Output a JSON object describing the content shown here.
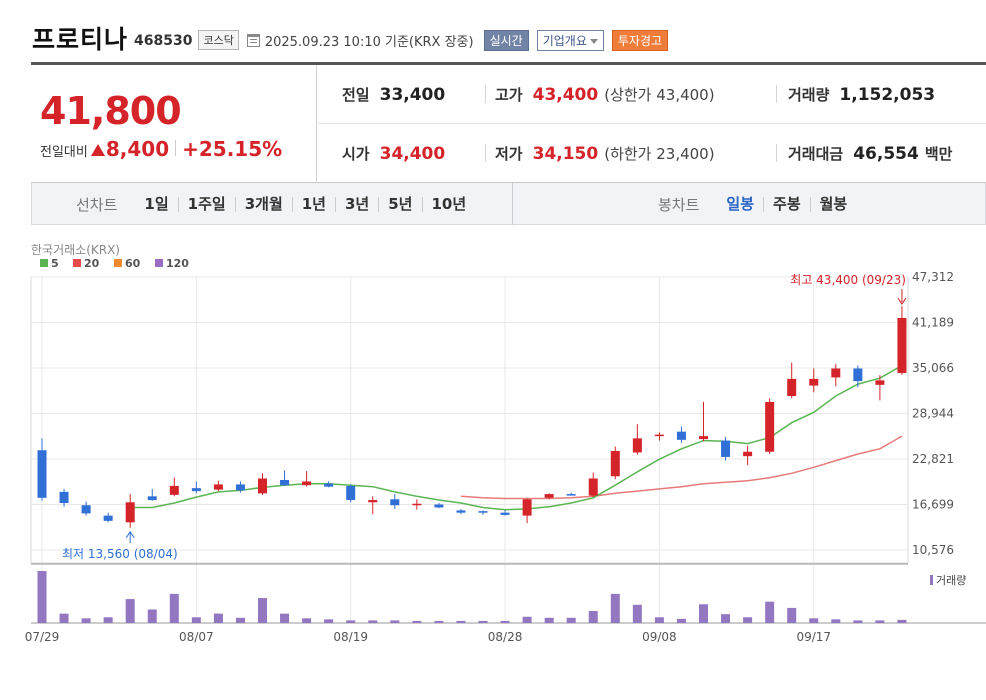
{
  "header": {
    "stock_name": "프로티나",
    "stock_code": "468530",
    "market": "코스닥",
    "timestamp": "2025.09.23 10:10  기준(KRX 장중)",
    "realtime_label": "실시간",
    "company_label": "기업개요",
    "warning_label": "투자경고"
  },
  "quote": {
    "current_price": "41,800",
    "change_label": "전일대비",
    "change_amount": "8,400",
    "change_pct": "+25.15%",
    "prev_close_label": "전일",
    "prev_close": "33,400",
    "high_label": "고가",
    "high": "43,400",
    "upper_limit": "(상한가 43,400)",
    "volume_label": "거래량",
    "volume": "1,152,053",
    "open_label": "시가",
    "open": "34,400",
    "low_label": "저가",
    "low": "34,150",
    "lower_limit": "(하한가 23,400)",
    "trade_value_label": "거래대금",
    "trade_value": "46,554",
    "trade_value_unit": "백만"
  },
  "tabs": {
    "line_chart_label": "선차트",
    "line_periods": [
      "1일",
      "1주일",
      "3개월",
      "1년",
      "3년",
      "5년",
      "10년"
    ],
    "candle_chart_label": "봉차트",
    "candle_periods": [
      "일봉",
      "주봉",
      "월봉"
    ],
    "active_candle": "일봉"
  },
  "chart_data": {
    "type": "candlestick",
    "source_label": "한국거래소(KRX)",
    "legend": [
      {
        "name": "5",
        "color": "#5ab552"
      },
      {
        "name": "20",
        "color": "#e54b4b"
      },
      {
        "name": "60",
        "color": "#ef8a2e"
      },
      {
        "name": "120",
        "color": "#9b6ec6"
      }
    ],
    "up_color": "#d5232a",
    "down_color": "#2f6fd6",
    "volume_color": "#9377c1",
    "y_ticks": [
      "47,312",
      "41,189",
      "35,066",
      "28,944",
      "22,821",
      "16,699",
      "10,576"
    ],
    "y_tick_values": [
      47312,
      41189,
      35066,
      28944,
      22821,
      16699,
      10576
    ],
    "x_tick_labels": [
      "07/29",
      "08/07",
      "08/19",
      "08/28",
      "09/08",
      "09/17"
    ],
    "x_tick_index": [
      0,
      7,
      14,
      21,
      28,
      35
    ],
    "volume_label": "거래량",
    "high_annotation": "최고 43,400 (09/23)",
    "low_annotation": "최저 13,560 (08/04)",
    "candles": [
      {
        "o": 24000,
        "h": 25600,
        "l": 17200,
        "c": 17600
      },
      {
        "o": 18400,
        "h": 18800,
        "l": 16400,
        "c": 16900
      },
      {
        "o": 16600,
        "h": 17100,
        "l": 15200,
        "c": 15500
      },
      {
        "o": 15200,
        "h": 15600,
        "l": 14300,
        "c": 14500
      },
      {
        "o": 14300,
        "h": 18100,
        "l": 13560,
        "c": 17000
      },
      {
        "o": 17800,
        "h": 18800,
        "l": 17200,
        "c": 17300
      },
      {
        "o": 18000,
        "h": 20300,
        "l": 17800,
        "c": 19200
      },
      {
        "o": 18900,
        "h": 19800,
        "l": 18200,
        "c": 18500
      },
      {
        "o": 18700,
        "h": 19900,
        "l": 18500,
        "c": 19400
      },
      {
        "o": 19400,
        "h": 19800,
        "l": 18300,
        "c": 18600
      },
      {
        "o": 18200,
        "h": 20900,
        "l": 18000,
        "c": 20200
      },
      {
        "o": 20000,
        "h": 21300,
        "l": 19200,
        "c": 19300
      },
      {
        "o": 19300,
        "h": 21200,
        "l": 19100,
        "c": 19800
      },
      {
        "o": 19500,
        "h": 19800,
        "l": 19000,
        "c": 19100
      },
      {
        "o": 19200,
        "h": 19400,
        "l": 17000,
        "c": 17300
      },
      {
        "o": 17000,
        "h": 17800,
        "l": 15400,
        "c": 17300
      },
      {
        "o": 17400,
        "h": 18100,
        "l": 16100,
        "c": 16600
      },
      {
        "o": 16700,
        "h": 17400,
        "l": 16000,
        "c": 16800
      },
      {
        "o": 16700,
        "h": 16900,
        "l": 16200,
        "c": 16300
      },
      {
        "o": 15900,
        "h": 16100,
        "l": 15400,
        "c": 15600
      },
      {
        "o": 15800,
        "h": 15900,
        "l": 15300,
        "c": 15700
      },
      {
        "o": 15600,
        "h": 15900,
        "l": 15200,
        "c": 15300
      },
      {
        "o": 15200,
        "h": 17500,
        "l": 14200,
        "c": 17400
      },
      {
        "o": 17600,
        "h": 18200,
        "l": 17400,
        "c": 18100
      },
      {
        "o": 18100,
        "h": 18300,
        "l": 17900,
        "c": 17900
      },
      {
        "o": 17900,
        "h": 21000,
        "l": 17700,
        "c": 20200
      },
      {
        "o": 20500,
        "h": 24500,
        "l": 20100,
        "c": 23900
      },
      {
        "o": 23700,
        "h": 27500,
        "l": 23400,
        "c": 25600
      },
      {
        "o": 25900,
        "h": 26400,
        "l": 25300,
        "c": 26100
      },
      {
        "o": 26500,
        "h": 27200,
        "l": 25000,
        "c": 25400
      },
      {
        "o": 25500,
        "h": 30500,
        "l": 25200,
        "c": 25900
      },
      {
        "o": 25300,
        "h": 25800,
        "l": 22600,
        "c": 23100
      },
      {
        "o": 23200,
        "h": 24600,
        "l": 22000,
        "c": 23800
      },
      {
        "o": 23800,
        "h": 31000,
        "l": 23500,
        "c": 30500
      },
      {
        "o": 31300,
        "h": 35800,
        "l": 31000,
        "c": 33600
      },
      {
        "o": 32700,
        "h": 35000,
        "l": 31800,
        "c": 33600
      },
      {
        "o": 33800,
        "h": 35600,
        "l": 32600,
        "c": 35000
      },
      {
        "o": 35000,
        "h": 35400,
        "l": 32500,
        "c": 33300
      },
      {
        "o": 32800,
        "h": 34100,
        "l": 30700,
        "c": 33400
      },
      {
        "o": 34400,
        "h": 43400,
        "l": 34150,
        "c": 41800
      }
    ],
    "ma5": [
      null,
      null,
      null,
      null,
      16300,
      16300,
      16900,
      17700,
      18400,
      18600,
      19000,
      19300,
      19500,
      19500,
      19300,
      19100,
      18400,
      17800,
      17300,
      16900,
      16300,
      16000,
      16100,
      16400,
      16900,
      17600,
      19300,
      21100,
      22800,
      24200,
      25300,
      25200,
      24900,
      25700,
      27700,
      29100,
      31300,
      32900,
      33700,
      35400
    ],
    "ma20": [
      null,
      null,
      null,
      null,
      null,
      null,
      null,
      null,
      null,
      null,
      null,
      null,
      null,
      null,
      null,
      null,
      null,
      null,
      null,
      17800,
      17600,
      17500,
      17500,
      17500,
      17600,
      17800,
      18200,
      18500,
      18800,
      19100,
      19500,
      19700,
      19900,
      20300,
      20900,
      21700,
      22600,
      23500,
      24200,
      25900
    ],
    "volume": [
      100,
      18,
      9,
      11,
      46,
      26,
      56,
      11,
      18,
      10,
      48,
      18,
      9,
      7,
      5,
      5,
      5,
      4,
      4,
      4,
      4,
      4,
      12,
      10,
      10,
      23,
      56,
      35,
      11,
      8,
      36,
      17,
      11,
      41,
      29,
      9,
      7,
      5,
      5,
      6
    ]
  }
}
